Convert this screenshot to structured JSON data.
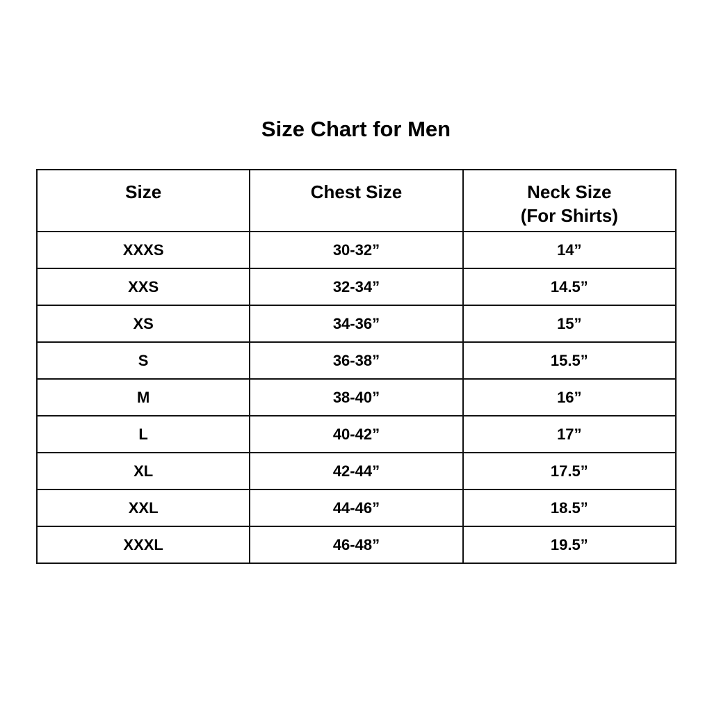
{
  "title": "Size Chart for Men",
  "columns": [
    "Size",
    "Chest Size",
    "Neck Size",
    "(For Shirts)"
  ],
  "rows": [
    [
      "XXXS",
      "30-32”",
      "14”"
    ],
    [
      "XXS",
      "32-34”",
      "14.5”"
    ],
    [
      "XS",
      "34-36”",
      "15”"
    ],
    [
      "S",
      "36-38”",
      "15.5”"
    ],
    [
      "M",
      "38-40”",
      "16”"
    ],
    [
      "L",
      "40-42”",
      "17”"
    ],
    [
      "XL",
      "42-44”",
      "17.5”"
    ],
    [
      "XXL",
      "44-46”",
      "18.5”"
    ],
    [
      "XXXL",
      "46-48”",
      "19.5”"
    ]
  ]
}
